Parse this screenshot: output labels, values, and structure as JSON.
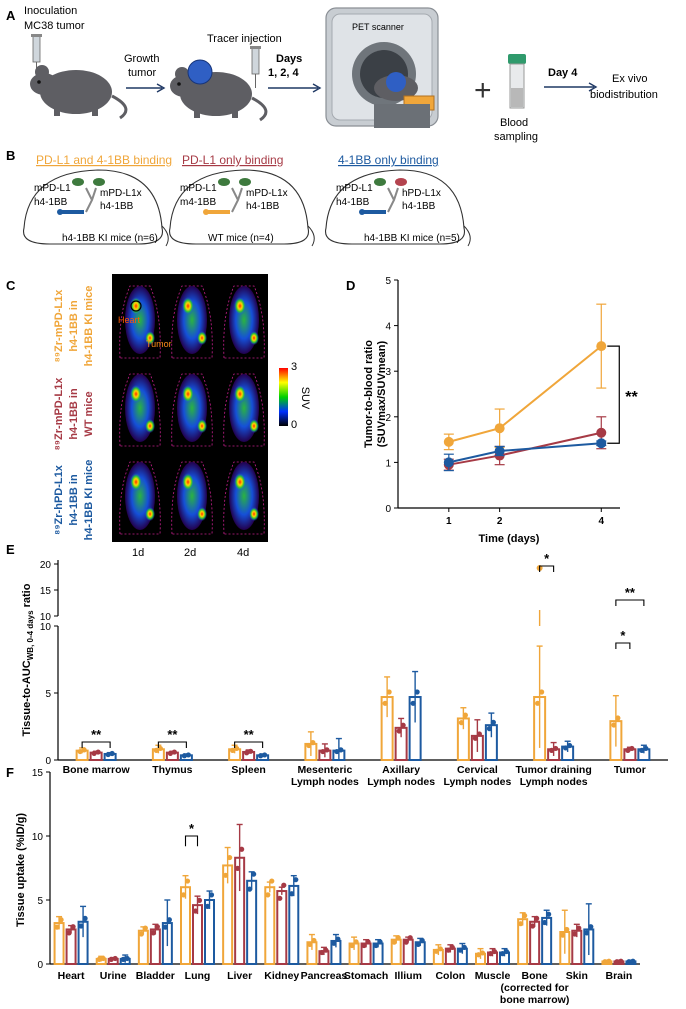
{
  "colors": {
    "orange": "#F0A63A",
    "red": "#A63A45",
    "blue": "#1D5AA0",
    "dark": "#111111"
  },
  "panelA": {
    "label": "A",
    "inoculation": [
      "Inoculation",
      "MC38 tumor"
    ],
    "growth": [
      "Growth",
      "tumor"
    ],
    "tracer": "Tracer injection",
    "days": [
      "Days",
      "1, 2, 4"
    ],
    "pet": "PET scanner",
    "blood": [
      "Blood",
      "sampling"
    ],
    "day4": "Day 4",
    "exvivo": [
      "Ex vivo",
      "biodistribution"
    ]
  },
  "panelB": {
    "label": "B",
    "groups": [
      {
        "title": "PD-L1 and 4-1BB binding",
        "color": "orange",
        "left": [
          "mPD-L1",
          "h4-1BB"
        ],
        "right": [
          "mPD-L1x",
          "h4-1BB"
        ],
        "mice": "h4-1BB KI mice (n=6)"
      },
      {
        "title": "PD-L1 only binding",
        "color": "red",
        "left": [
          "mPD-L1",
          "m4-1BB"
        ],
        "right": [
          "mPD-L1x",
          "h4-1BB"
        ],
        "mice": "WT mice (n=4)"
      },
      {
        "title": "4-1BB only binding",
        "color": "blue",
        "left": [
          "mPD-L1",
          "h4-1BB"
        ],
        "right": [
          "hPD-L1x",
          "h4-1BB"
        ],
        "mice": "h4-1BB KI mice (n=5)"
      }
    ]
  },
  "panelC": {
    "label": "C",
    "rows": [
      {
        "text": [
          "⁸⁹Zr-mPD-L1x",
          "h4-1BB in",
          "h4-1BB KI mice"
        ],
        "color": "orange"
      },
      {
        "text": [
          "⁸⁹Zr-mPD-L1x",
          "h4-1BB in",
          "WT mice"
        ],
        "color": "red"
      },
      {
        "text": [
          "⁸⁹Zr-hPD-L1x",
          "h4-1BB in",
          "h4-1BB KI mice"
        ],
        "color": "blue"
      }
    ],
    "columns": [
      "1d",
      "2d",
      "4d"
    ],
    "heart": "Heart",
    "tumor": "Tumor",
    "scale_max": "3",
    "scale_min": "0",
    "scale_unit": "SUV"
  },
  "panelE": {
    "label": "E",
    "ylabel_a": "Tissue-to-AUC",
    "ylabel_sub": "WB, 0-4 days",
    "ylabel_b": " ratio",
    "upper_ticks": [
      "10",
      "15",
      "20"
    ]
  },
  "panelF": {
    "label": "F"
  },
  "chart_data": [
    {
      "panel": "D",
      "type": "line",
      "x": [
        1,
        2,
        4
      ],
      "xlabel": "Time (days)",
      "ylabel": [
        "Tumor-to-blood ratio",
        "(SUVmax/SUVmean)"
      ],
      "ylim": [
        0,
        5
      ],
      "yticks": [
        0,
        1,
        2,
        3,
        4,
        5
      ],
      "series": [
        {
          "color": "orange",
          "values": [
            1.45,
            1.75,
            3.55
          ],
          "err": [
            0.17,
            0.42,
            0.92
          ]
        },
        {
          "color": "red",
          "values": [
            0.95,
            1.15,
            1.65
          ],
          "err": [
            0.12,
            0.2,
            0.35
          ]
        },
        {
          "color": "blue",
          "values": [
            1.0,
            1.25,
            1.42
          ],
          "err": [
            0.18,
            0.1,
            0.05
          ]
        }
      ],
      "annotation": "**"
    },
    {
      "panel": "E",
      "type": "bar",
      "categories": [
        [
          "Bone marrow"
        ],
        [
          "Thymus"
        ],
        [
          "Spleen"
        ],
        [
          "Mesenteric",
          "Lymph nodes"
        ],
        [
          "Axillary",
          "Lymph nodes"
        ],
        [
          "Cervical",
          "Lymph nodes"
        ],
        [
          "Tumor draining",
          "Lymph nodes"
        ],
        [
          "Tumor"
        ]
      ],
      "ylim_lower": [
        0,
        10
      ],
      "yticks_lower": [
        0,
        5,
        10
      ],
      "ylim_upper": [
        10,
        20
      ],
      "series_colors": [
        "orange",
        "red",
        "blue"
      ],
      "values": [
        [
          0.7,
          0.55,
          0.45
        ],
        [
          0.8,
          0.55,
          0.35
        ],
        [
          0.8,
          0.6,
          0.35
        ],
        [
          1.2,
          0.7,
          0.7
        ],
        [
          4.7,
          2.4,
          4.7
        ],
        [
          3.1,
          1.8,
          2.6
        ],
        [
          4.7,
          0.8,
          1.0
        ],
        [
          2.9,
          0.8,
          0.8
        ]
      ],
      "err": [
        [
          0.2,
          0.1,
          0.1
        ],
        [
          0.3,
          0.1,
          0.1
        ],
        [
          0.3,
          0.15,
          0.1
        ],
        [
          0.9,
          0.5,
          0.9
        ],
        [
          1.5,
          0.7,
          1.9
        ],
        [
          0.8,
          1.2,
          0.9
        ],
        [
          3.8,
          0.5,
          0.4
        ],
        [
          1.9,
          0.15,
          0.3
        ]
      ],
      "sig": [
        {
          "from": 0,
          "to": 0,
          "label": "**"
        },
        {
          "from": 1,
          "to": 1,
          "label": "**"
        },
        {
          "from": 2,
          "to": 2,
          "label": "**"
        },
        {
          "from": 6,
          "to": 6,
          "label": "*"
        },
        {
          "from": 7,
          "to": 7,
          "label": "*"
        },
        {
          "from": 7,
          "to": 7,
          "label": "**"
        }
      ]
    },
    {
      "panel": "F",
      "type": "bar",
      "categories": [
        [
          "Heart"
        ],
        [
          "Urine"
        ],
        [
          "Bladder"
        ],
        [
          "Lung"
        ],
        [
          "Liver"
        ],
        [
          "Kidney"
        ],
        [
          "Pancreas"
        ],
        [
          "Stomach"
        ],
        [
          "Illium"
        ],
        [
          "Colon"
        ],
        [
          "Muscle"
        ],
        [
          "Bone",
          "(corrected for",
          "bone marrow)"
        ],
        [
          "Skin"
        ],
        [
          "Brain"
        ]
      ],
      "ylabel": "Tissue uptake (%ID/g)",
      "ylim": [
        0,
        15
      ],
      "yticks": [
        0,
        5,
        10,
        15
      ],
      "series_colors": [
        "orange",
        "red",
        "blue"
      ],
      "values": [
        [
          3.2,
          2.7,
          3.3
        ],
        [
          0.4,
          0.4,
          0.4
        ],
        [
          2.6,
          2.7,
          3.2
        ],
        [
          6.0,
          4.6,
          5.0
        ],
        [
          7.7,
          8.3,
          6.5
        ],
        [
          6.0,
          5.7,
          6.1
        ],
        [
          1.7,
          1.0,
          1.8
        ],
        [
          1.6,
          1.6,
          1.6
        ],
        [
          1.9,
          1.9,
          1.7
        ],
        [
          1.1,
          1.2,
          1.2
        ],
        [
          0.8,
          0.9,
          0.9
        ],
        [
          3.5,
          3.3,
          3.6
        ],
        [
          2.5,
          2.6,
          2.7
        ],
        [
          0.2,
          0.2,
          0.2
        ]
      ],
      "err": [
        [
          0.5,
          0.3,
          1.2
        ],
        [
          0.2,
          0.1,
          0.3
        ],
        [
          0.3,
          0.4,
          1.8
        ],
        [
          0.9,
          0.7,
          0.7
        ],
        [
          1.4,
          2.6,
          0.7
        ],
        [
          0.4,
          0.3,
          0.8
        ],
        [
          0.6,
          0.3,
          0.5
        ],
        [
          0.5,
          0.3,
          0.3
        ],
        [
          0.3,
          0.2,
          0.3
        ],
        [
          0.4,
          0.3,
          0.4
        ],
        [
          0.4,
          0.3,
          0.3
        ],
        [
          0.5,
          0.4,
          0.6
        ],
        [
          1.7,
          0.5,
          2.0
        ],
        [
          0.1,
          0.1,
          0.1
        ]
      ],
      "sig": [
        {
          "from": 3,
          "to": 3,
          "label": "*"
        }
      ]
    }
  ]
}
